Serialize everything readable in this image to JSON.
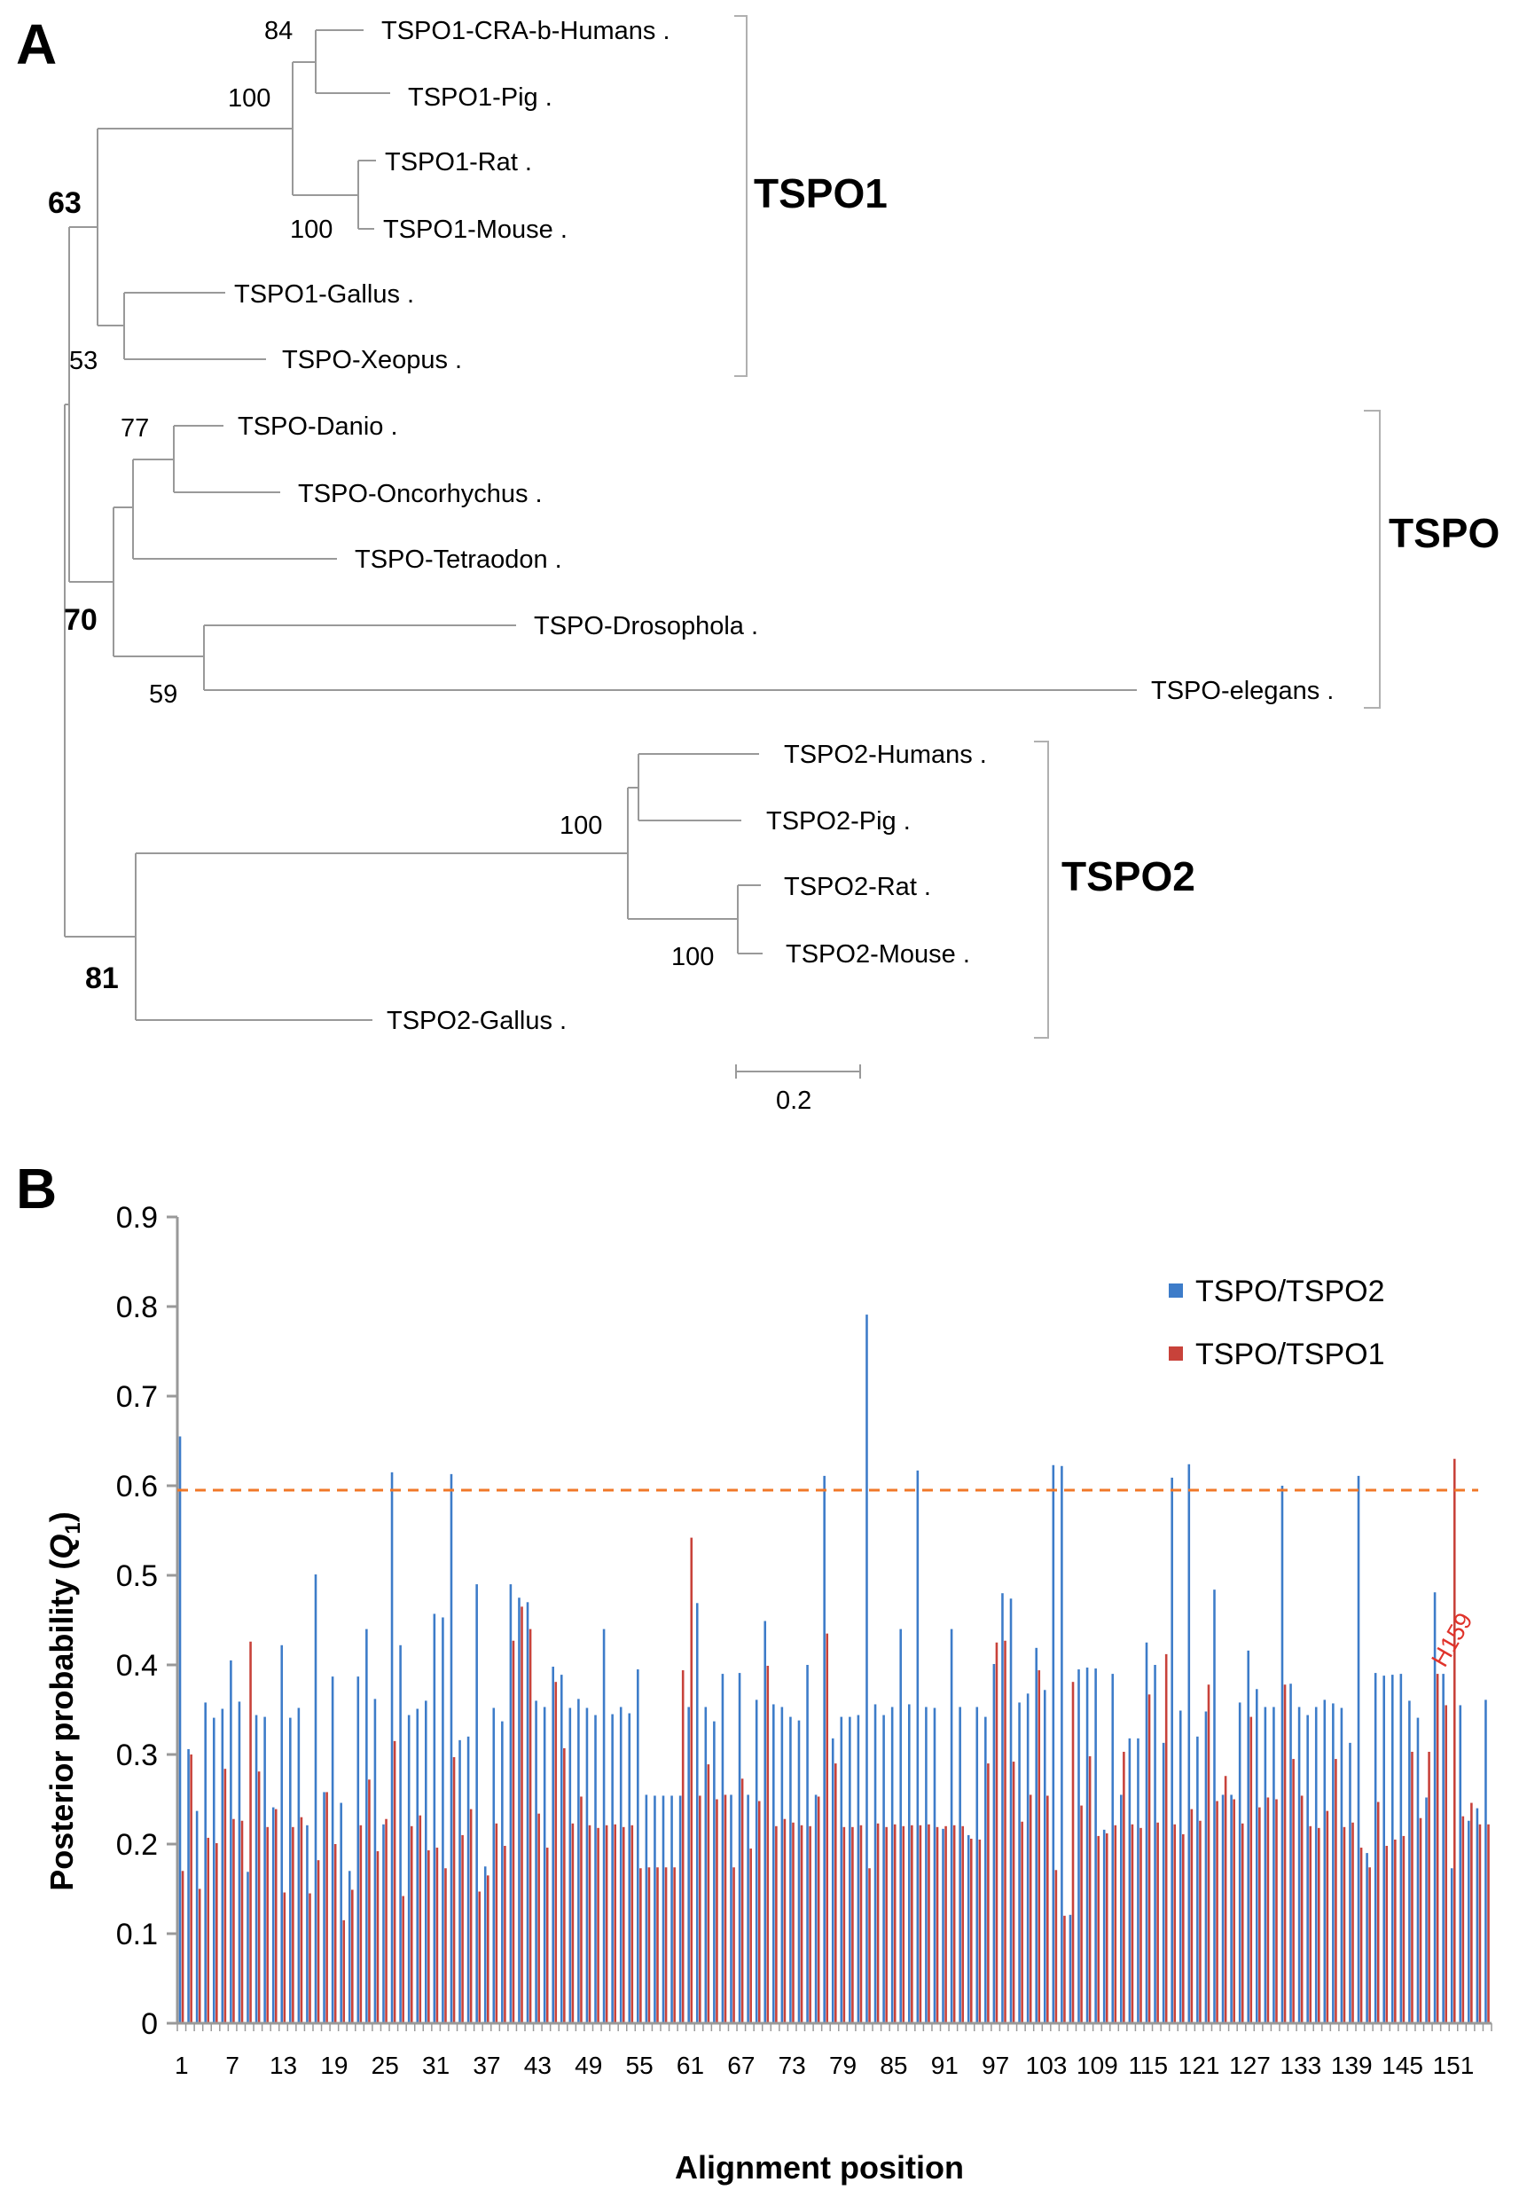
{
  "figure": {
    "panel_a_label": "A",
    "panel_b_label": "B"
  },
  "tree": {
    "leaves": [
      "TSPO1-CRA-b-Humans .",
      "TSPO1-Pig .",
      "TSPO1-Rat .",
      "TSPO1-Mouse .",
      "TSPO1-Gallus .",
      "TSPO-Xeopus .",
      "TSPO-Danio .",
      "TSPO-Oncorhychus .",
      "TSPO-Tetraodon .",
      "TSPO-Drosophola .",
      "TSPO-elegans .",
      "TSPO2-Humans .",
      "TSPO2-Pig .",
      "TSPO2-Rat .",
      "TSPO2-Mouse .",
      "TSPO2-Gallus ."
    ],
    "bootstrap": {
      "humans_pig": "84",
      "pig_rat_group": "100",
      "rat_mouse": "100",
      "tspo1_root": "63",
      "gallus_xeopus": "53",
      "danio_onco": "77",
      "tspo_root": "70",
      "dros_elegans": "59",
      "tspo2_mammals": "100",
      "tspo2_rat_mouse": "100",
      "tspo2_root": "81"
    },
    "clades": [
      "TSPO1",
      "TSPO",
      "TSPO2"
    ],
    "scale_bar": "0.2"
  },
  "chart_data": {
    "type": "bar",
    "xlabel": "Alignment position",
    "ylabel_main": "Posterior probability (",
    "ylabel_symbol": "Q",
    "ylabel_sub": "1",
    "ylabel_close": ")",
    "ylim": [
      0,
      0.9
    ],
    "yticks": [
      "0",
      "0.1",
      "0.2",
      "0.3",
      "0.4",
      "0.5",
      "0.6",
      "0.7",
      "0.8",
      "0.9"
    ],
    "xtick_labels": [
      "1",
      "7",
      "13",
      "19",
      "25",
      "31",
      "37",
      "43",
      "49",
      "55",
      "61",
      "67",
      "73",
      "79",
      "85",
      "91",
      "97",
      "103",
      "109",
      "115",
      "121",
      "127",
      "133",
      "139",
      "145",
      "151"
    ],
    "threshold": 0.595,
    "annotation": {
      "label": "H159",
      "position": 148
    },
    "legend_position": "top-right",
    "series": [
      {
        "name": "TSPO/TSPO2",
        "color": "#3d7cc9",
        "values": [
          0.655,
          0.306,
          0.237,
          0.358,
          0.341,
          0.351,
          0.405,
          0.359,
          0.169,
          0.344,
          0.342,
          0.241,
          0.422,
          0.341,
          0.352,
          0.221,
          0.501,
          0.258,
          0.387,
          0.246,
          0.17,
          0.387,
          0.44,
          0.362,
          0.222,
          0.615,
          0.422,
          0.344,
          0.351,
          0.36,
          0.457,
          0.453,
          0.613,
          0.316,
          0.32,
          0.49,
          0.175,
          0.352,
          0.337,
          0.49,
          0.475,
          0.47,
          0.36,
          0.353,
          0.398,
          0.389,
          0.352,
          0.362,
          0.352,
          0.344,
          0.44,
          0.345,
          0.353,
          0.346,
          0.395,
          0.255,
          0.254,
          0.254,
          0.254,
          0.254,
          0.353,
          0.469,
          0.353,
          0.337,
          0.39,
          0.255,
          0.391,
          0.255,
          0.361,
          0.449,
          0.356,
          0.353,
          0.342,
          0.338,
          0.4,
          0.255,
          0.611,
          0.318,
          0.342,
          0.342,
          0.344,
          0.791,
          0.356,
          0.344,
          0.353,
          0.44,
          0.356,
          0.617,
          0.353,
          0.352,
          0.217,
          0.44,
          0.353,
          0.21,
          0.353,
          0.342,
          0.401,
          0.48,
          0.474,
          0.358,
          0.368,
          0.419,
          0.372,
          0.623,
          0.622,
          0.121,
          0.395,
          0.397,
          0.396,
          0.216,
          0.39,
          0.255,
          0.318,
          0.318,
          0.425,
          0.4,
          0.313,
          0.609,
          0.349,
          0.624,
          0.32,
          0.348,
          0.484,
          0.255,
          0.255,
          0.358,
          0.416,
          0.373,
          0.353,
          0.353,
          0.6,
          0.379,
          0.353,
          0.344,
          0.353,
          0.361,
          0.357,
          0.352,
          0.313,
          0.611,
          0.19,
          0.391,
          0.388,
          0.389,
          0.39,
          0.36,
          0.341,
          0.252,
          0.481,
          0.39,
          0.173,
          0.355,
          0.226,
          0.24,
          0.361
        ]
      },
      {
        "name": "TSPO/TSPO1",
        "color": "#c8423a",
        "values": [
          0.17,
          0.3,
          0.15,
          0.207,
          0.201,
          0.284,
          0.228,
          0.226,
          0.426,
          0.281,
          0.219,
          0.239,
          0.146,
          0.219,
          0.23,
          0.145,
          0.182,
          0.258,
          0.2,
          0.115,
          0.149,
          0.221,
          0.272,
          0.192,
          0.228,
          0.315,
          0.142,
          0.22,
          0.232,
          0.193,
          0.196,
          0.173,
          0.297,
          0.21,
          0.239,
          0.147,
          0.165,
          0.223,
          0.198,
          0.427,
          0.465,
          0.44,
          0.234,
          0.196,
          0.381,
          0.307,
          0.223,
          0.253,
          0.221,
          0.218,
          0.221,
          0.222,
          0.219,
          0.221,
          0.173,
          0.174,
          0.174,
          0.174,
          0.174,
          0.394,
          0.542,
          0.254,
          0.289,
          0.25,
          0.255,
          0.174,
          0.273,
          0.195,
          0.248,
          0.399,
          0.22,
          0.228,
          0.224,
          0.221,
          0.22,
          0.253,
          0.435,
          0.29,
          0.219,
          0.219,
          0.221,
          0.173,
          0.223,
          0.219,
          0.222,
          0.22,
          0.221,
          0.221,
          0.222,
          0.219,
          0.22,
          0.221,
          0.22,
          0.206,
          0.205,
          0.29,
          0.425,
          0.427,
          0.292,
          0.225,
          0.255,
          0.394,
          0.254,
          0.171,
          0.12,
          0.381,
          0.243,
          0.298,
          0.209,
          0.212,
          0.221,
          0.303,
          0.222,
          0.218,
          0.367,
          0.224,
          0.412,
          0.222,
          0.211,
          0.239,
          0.226,
          0.378,
          0.248,
          0.276,
          0.25,
          0.223,
          0.342,
          0.241,
          0.252,
          0.25,
          0.378,
          0.295,
          0.254,
          0.22,
          0.218,
          0.237,
          0.295,
          0.219,
          0.224,
          0.196,
          0.174,
          0.247,
          0.198,
          0.205,
          0.209,
          0.303,
          0.229,
          0.303,
          0.39,
          0.355,
          0.63,
          0.231,
          0.246,
          0.222,
          0.222
        ]
      }
    ]
  }
}
